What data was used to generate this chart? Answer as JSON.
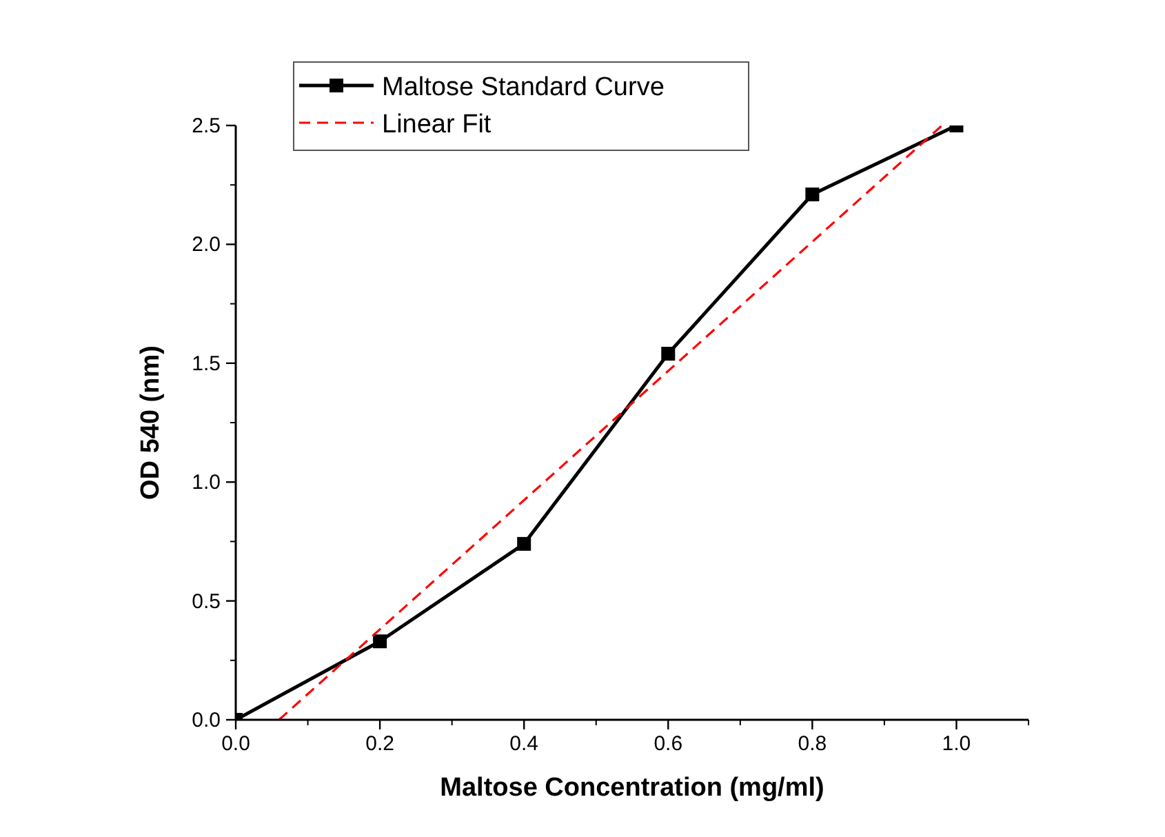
{
  "chart_data": {
    "type": "line",
    "xlabel": "Maltose Concentration (mg/ml)",
    "ylabel": "OD 540 (nm)",
    "x": [
      0,
      0.2,
      0.4,
      0.6,
      0.8,
      1.0
    ],
    "series": [
      {
        "name": "Maltose Standard Curve",
        "color": "#000000",
        "values": [
          0,
          0.33,
          0.74,
          1.54,
          2.21,
          2.5
        ],
        "marker": "square",
        "line_style": "solid"
      },
      {
        "name": "Linear Fit",
        "color": "#ff0000",
        "x": [
          0.06,
          0.98
        ],
        "values": [
          0,
          2.5
        ],
        "marker": "none",
        "line_style": "dashed"
      }
    ],
    "xlim": [
      0,
      1.1
    ],
    "xticks": [
      {
        "value": 0,
        "label": "0.0"
      },
      0.2,
      0.4,
      0.6,
      0.8,
      {
        "value": 1,
        "label": "1.0"
      }
    ],
    "ylim": [
      0,
      2.5
    ],
    "yticks": [
      {
        "value": 0,
        "label": "0.0"
      },
      0.5,
      {
        "value": 1,
        "label": "1.0"
      },
      1.5,
      {
        "value": 2,
        "label": "2.0"
      },
      2.5
    ],
    "grid": false,
    "legend": "top left"
  }
}
